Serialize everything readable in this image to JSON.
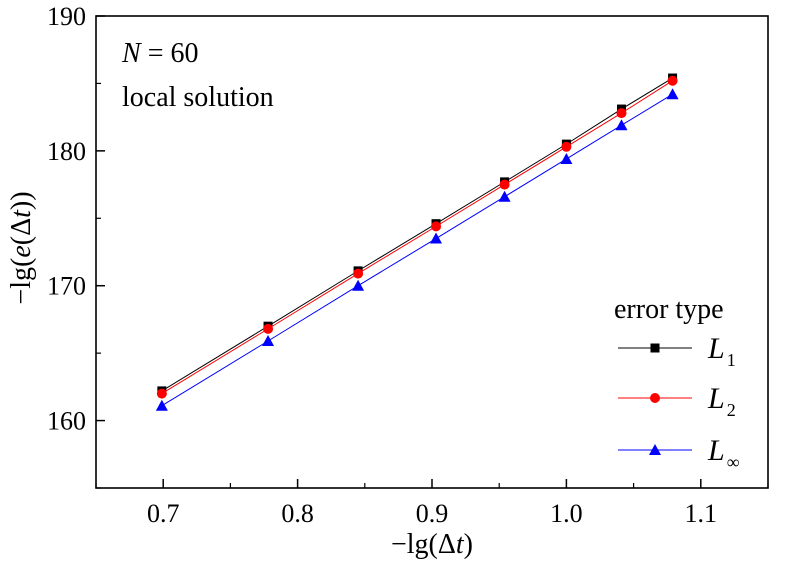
{
  "chart_data": {
    "type": "line",
    "x": [
      0.699,
      0.778,
      0.845,
      0.903,
      0.954,
      1.0,
      1.041,
      1.079
    ],
    "series": [
      {
        "name": "L1",
        "name_base": "L",
        "name_sub": "1",
        "color": "#000000",
        "marker": "square",
        "values": [
          162.2,
          167.0,
          171.1,
          174.6,
          177.7,
          180.5,
          183.1,
          185.4
        ]
      },
      {
        "name": "L2",
        "name_base": "L",
        "name_sub": "2",
        "color": "#ff0000",
        "marker": "circle",
        "values": [
          162.0,
          166.8,
          170.9,
          174.4,
          177.5,
          180.3,
          182.8,
          185.2
        ]
      },
      {
        "name": "L∞",
        "name_base": "L",
        "name_sub": "∞",
        "color": "#0000ff",
        "marker": "triangle",
        "values": [
          161.1,
          165.9,
          170.0,
          173.5,
          176.6,
          179.4,
          181.9,
          184.2
        ]
      }
    ],
    "xlim": [
      0.65,
      1.15
    ],
    "ylim": [
      155,
      190
    ],
    "xticks": [
      "0.7",
      "0.8",
      "0.9",
      "1.0",
      "1.1"
    ],
    "xtick_values": [
      0.7,
      0.8,
      0.9,
      1.0,
      1.1
    ],
    "yticks": [
      "160",
      "170",
      "180",
      "190"
    ],
    "ytick_values": [
      160,
      170,
      180,
      190
    ],
    "xlabel_prefix": "−lg(Δ",
    "xlabel_var": "t",
    "xlabel_suffix": ")",
    "ylabel_prefix": "−lg(",
    "ylabel_var": "e",
    "ylabel_mid": "(Δ",
    "ylabel_var2": "t",
    "ylabel_suffix": "))",
    "annotation_var": "N",
    "annotation_eq": " = 60",
    "annotation_line2": "local solution",
    "legend_title": "error type",
    "legend_position": "bottom-right",
    "grid": false
  }
}
